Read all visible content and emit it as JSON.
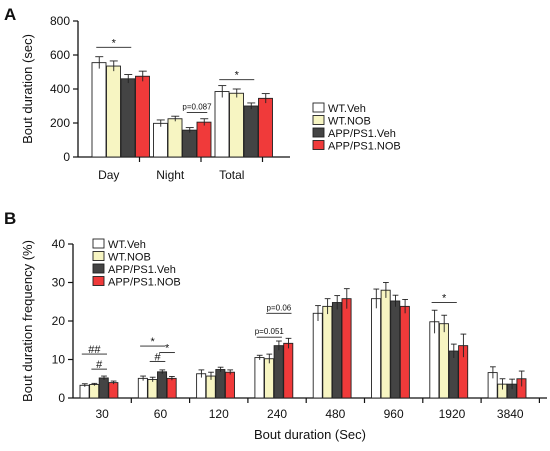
{
  "chart_data": [
    {
      "panel": "A",
      "type": "bar",
      "xlabel": "",
      "ylabel": "Bout duration (sec)",
      "ylim": [
        0,
        800
      ],
      "yticks": [
        0,
        200,
        400,
        600,
        800
      ],
      "categories": [
        "Day",
        "Night",
        "Total"
      ],
      "series": [
        {
          "name": "WT.Veh",
          "color": "#ffffff",
          "values": [
            555,
            198,
            385
          ],
          "errors": [
            35,
            20,
            35
          ]
        },
        {
          "name": "WT.NOB",
          "color": "#f7f5c2",
          "values": [
            535,
            225,
            375
          ],
          "errors": [
            30,
            15,
            25
          ]
        },
        {
          "name": "APP/PS1.Veh",
          "color": "#444444",
          "values": [
            460,
            158,
            300
          ],
          "errors": [
            25,
            15,
            18
          ]
        },
        {
          "name": "APP/PS1.NOB",
          "color": "#f03a3a",
          "values": [
            475,
            205,
            345
          ],
          "errors": [
            30,
            20,
            28
          ]
        }
      ],
      "legend": "right",
      "annotations": [
        {
          "text": "*",
          "category": "Day",
          "from_series": 0,
          "to_series": 2,
          "y": 645
        },
        {
          "text": "p=0.087",
          "category": "Night",
          "from_series": 2,
          "to_series": 3,
          "y": 262
        },
        {
          "text": "*",
          "category": "Total",
          "from_series": 0,
          "to_series": 2,
          "y": 455
        }
      ]
    },
    {
      "panel": "B",
      "type": "bar",
      "xlabel": "Bout duration (Sec)",
      "ylabel": "Bout duration frequency (%)",
      "ylim": [
        0,
        40
      ],
      "yticks": [
        0,
        10,
        20,
        30,
        40
      ],
      "categories": [
        "30",
        "60",
        "120",
        "240",
        "480",
        "960",
        "1920",
        "3840"
      ],
      "series": [
        {
          "name": "WT.Veh",
          "color": "#ffffff",
          "values": [
            3.3,
            5.1,
            6.3,
            10.5,
            22.0,
            25.8,
            19.8,
            6.6
          ],
          "errors": [
            0.4,
            0.6,
            1.0,
            0.6,
            2.0,
            2.5,
            3.0,
            1.5
          ]
        },
        {
          "name": "WT.NOB",
          "color": "#f7f5c2",
          "values": [
            3.5,
            4.8,
            5.7,
            10.2,
            23.8,
            28.0,
            19.3,
            3.6
          ],
          "errors": [
            0.3,
            0.6,
            1.0,
            1.2,
            2.0,
            2.0,
            2.2,
            1.4
          ]
        },
        {
          "name": "APP/PS1.Veh",
          "color": "#444444",
          "values": [
            5.2,
            6.8,
            7.4,
            13.6,
            24.8,
            25.2,
            12.2,
            3.6
          ],
          "errors": [
            0.5,
            0.5,
            0.6,
            1.2,
            1.8,
            1.5,
            1.8,
            1.3
          ]
        },
        {
          "name": "APP/PS1.NOB",
          "color": "#f03a3a",
          "values": [
            4.0,
            5.1,
            6.7,
            14.2,
            25.8,
            23.8,
            13.6,
            5.0
          ],
          "errors": [
            0.4,
            0.5,
            0.6,
            1.3,
            2.6,
            1.8,
            3.0,
            2.0
          ]
        }
      ],
      "legend": "top-left",
      "annotations": [
        {
          "text": "##",
          "category": "30",
          "from_series": 0,
          "to_series": 2,
          "y": 11.4
        },
        {
          "text": "#",
          "category": "30",
          "from_series": 1,
          "to_series": 2,
          "y": 7.5
        },
        {
          "text": "*",
          "category": "60",
          "from_series": 0,
          "to_series": 2,
          "y": 13.5
        },
        {
          "text": "#",
          "category": "60",
          "from_series": 1,
          "to_series": 2,
          "y": 9.5
        },
        {
          "text": "*",
          "category": "60",
          "from_series": 2,
          "to_series": 3,
          "y": 11.8
        },
        {
          "text": "p=0.06",
          "category": "240",
          "from_series": 1,
          "to_series": 3,
          "y": 22.0
        },
        {
          "text": "p=0.051",
          "category": "240",
          "from_series": 0,
          "to_series": 2,
          "y": 15.8
        },
        {
          "text": "*",
          "category": "1920",
          "from_series": 0,
          "to_series": 2,
          "y": 24.8
        }
      ]
    }
  ]
}
